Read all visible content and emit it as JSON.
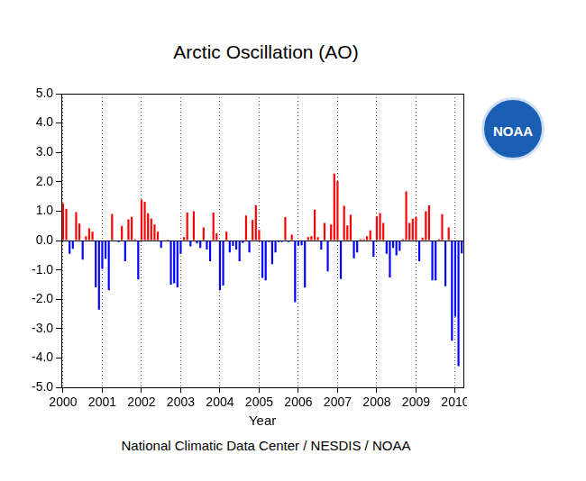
{
  "chart_data": {
    "type": "bar",
    "title": "Arctic Oscillation (AO)",
    "xlabel": "Year",
    "source": "National Climatic Data Center / NESDIS / NOAA",
    "logo": "NOAA",
    "categories": [
      "2000",
      null,
      null,
      null,
      null,
      null,
      null,
      null,
      null,
      null,
      null,
      null,
      "2001",
      null,
      null,
      null,
      null,
      null,
      null,
      null,
      null,
      null,
      null,
      null,
      "2002",
      null,
      null,
      null,
      null,
      null,
      null,
      null,
      null,
      null,
      null,
      null,
      "2003",
      null,
      null,
      null,
      null,
      null,
      null,
      null,
      null,
      null,
      null,
      null,
      "2004",
      null,
      null,
      null,
      null,
      null,
      null,
      null,
      null,
      null,
      null,
      null,
      "2005",
      null,
      null,
      null,
      null,
      null,
      null,
      null,
      null,
      null,
      null,
      null,
      "2006",
      null,
      null,
      null,
      null,
      null,
      null,
      null,
      null,
      null,
      null,
      null,
      "2007",
      null,
      null,
      null,
      null,
      null,
      null,
      null,
      null,
      null,
      null,
      null,
      "2008",
      null,
      null,
      null,
      null,
      null,
      null,
      null,
      null,
      null,
      null,
      null,
      "2009",
      null,
      null,
      null,
      null,
      null,
      null,
      null,
      null,
      null,
      null,
      null,
      "2010",
      null,
      null
    ],
    "values": [
      1.27,
      1.08,
      -0.45,
      -0.28,
      0.97,
      0.58,
      -0.65,
      0.15,
      0.42,
      0.3,
      -1.59,
      -2.35,
      -0.96,
      -0.62,
      -1.69,
      0.91,
      -0.02,
      -0.05,
      0.5,
      -0.7,
      0.72,
      0.81,
      0.05,
      -1.32,
      1.4,
      1.32,
      0.93,
      0.75,
      0.55,
      0.3,
      -0.25,
      -0.03,
      0.03,
      -1.5,
      -1.45,
      -1.59,
      -0.45,
      0.12,
      0.95,
      -0.2,
      1.0,
      -0.1,
      -0.25,
      0.45,
      -0.3,
      -0.7,
      0.95,
      0.25,
      -1.69,
      -1.53,
      0.3,
      -0.4,
      -0.18,
      -0.3,
      -0.7,
      -0.08,
      0.85,
      -0.4,
      0.7,
      1.21,
      0.36,
      -1.27,
      -1.35,
      -0.05,
      -0.8,
      -0.4,
      -0.05,
      -0.05,
      0.8,
      -0.05,
      0.2,
      -2.1,
      -0.17,
      -0.16,
      -1.6,
      0.12,
      0.15,
      1.05,
      0.12,
      -0.3,
      0.6,
      -1.05,
      0.55,
      2.28,
      2.03,
      -1.31,
      1.18,
      0.52,
      0.88,
      -0.6,
      -0.4,
      0.05,
      0.05,
      0.15,
      0.35,
      -0.55,
      0.82,
      0.94,
      0.6,
      -0.45,
      -1.25,
      -0.25,
      -0.5,
      -0.35,
      0.05,
      1.67,
      0.6,
      0.75,
      0.8,
      -0.7,
      0.1,
      1.0,
      1.2,
      -1.35,
      -1.35,
      0.05,
      0.9,
      -1.55,
      0.45,
      -3.41,
      -2.59,
      -4.27,
      -0.43
    ],
    "colors": [
      "#ff0000",
      "#ff0000",
      "#0000ff",
      "#0000ff",
      "#ff0000",
      "#ff0000",
      "#0000ff",
      "#ff0000",
      "#ff0000",
      "#ff0000",
      "#0000ff",
      "#0000ff",
      "#0000ff",
      "#0000ff",
      "#0000ff",
      "#ff0000",
      "#0000ff",
      "#0000ff",
      "#ff0000",
      "#0000ff",
      "#ff0000",
      "#ff0000",
      "#ff0000",
      "#0000ff",
      "#ff0000",
      "#ff0000",
      "#ff0000",
      "#ff0000",
      "#ff0000",
      "#ff0000",
      "#0000ff",
      "#0000ff",
      "#ff0000",
      "#0000ff",
      "#0000ff",
      "#0000ff",
      "#0000ff",
      "#ff0000",
      "#ff0000",
      "#0000ff",
      "#ff0000",
      "#0000ff",
      "#0000ff",
      "#ff0000",
      "#0000ff",
      "#0000ff",
      "#ff0000",
      "#ff0000",
      "#0000ff",
      "#0000ff",
      "#ff0000",
      "#0000ff",
      "#0000ff",
      "#0000ff",
      "#0000ff",
      "#0000ff",
      "#ff0000",
      "#0000ff",
      "#ff0000",
      "#ff0000",
      "#ff0000",
      "#0000ff",
      "#0000ff",
      "#0000ff",
      "#0000ff",
      "#0000ff",
      "#0000ff",
      "#0000ff",
      "#ff0000",
      "#0000ff",
      "#ff0000",
      "#0000ff",
      "#0000ff",
      "#0000ff",
      "#0000ff",
      "#ff0000",
      "#ff0000",
      "#ff0000",
      "#ff0000",
      "#0000ff",
      "#ff0000",
      "#0000ff",
      "#ff0000",
      "#ff0000",
      "#ff0000",
      "#0000ff",
      "#ff0000",
      "#ff0000",
      "#ff0000",
      "#0000ff",
      "#0000ff",
      "#ff0000",
      "#ff0000",
      "#ff0000",
      "#ff0000",
      "#0000ff",
      "#ff0000",
      "#ff0000",
      "#ff0000",
      "#0000ff",
      "#0000ff",
      "#0000ff",
      "#0000ff",
      "#0000ff",
      "#ff0000",
      "#ff0000",
      "#ff0000",
      "#ff0000",
      "#ff0000",
      "#0000ff",
      "#ff0000",
      "#ff0000",
      "#ff0000",
      "#0000ff",
      "#0000ff",
      "#ff0000",
      "#ff0000",
      "#0000ff",
      "#ff0000",
      "#0000ff",
      "#0000ff",
      "#0000ff",
      "#0000ff"
    ],
    "ylim": [
      -5,
      5
    ],
    "yticks": [
      {
        "value": -5,
        "label": "-5.0"
      },
      {
        "value": -4,
        "label": "-4.0"
      },
      {
        "value": -3,
        "label": "-3.0"
      },
      {
        "value": -2,
        "label": "-2.0"
      },
      {
        "value": -1,
        "label": "-1.0"
      },
      {
        "value": 0,
        "label": "0.0"
      },
      {
        "value": 1,
        "label": "1.0"
      },
      {
        "value": 2,
        "label": "2.0"
      },
      {
        "value": 3,
        "label": "3.0"
      },
      {
        "value": 4,
        "label": "4.0"
      },
      {
        "value": 5,
        "label": "5.0"
      }
    ],
    "grid": true
  }
}
